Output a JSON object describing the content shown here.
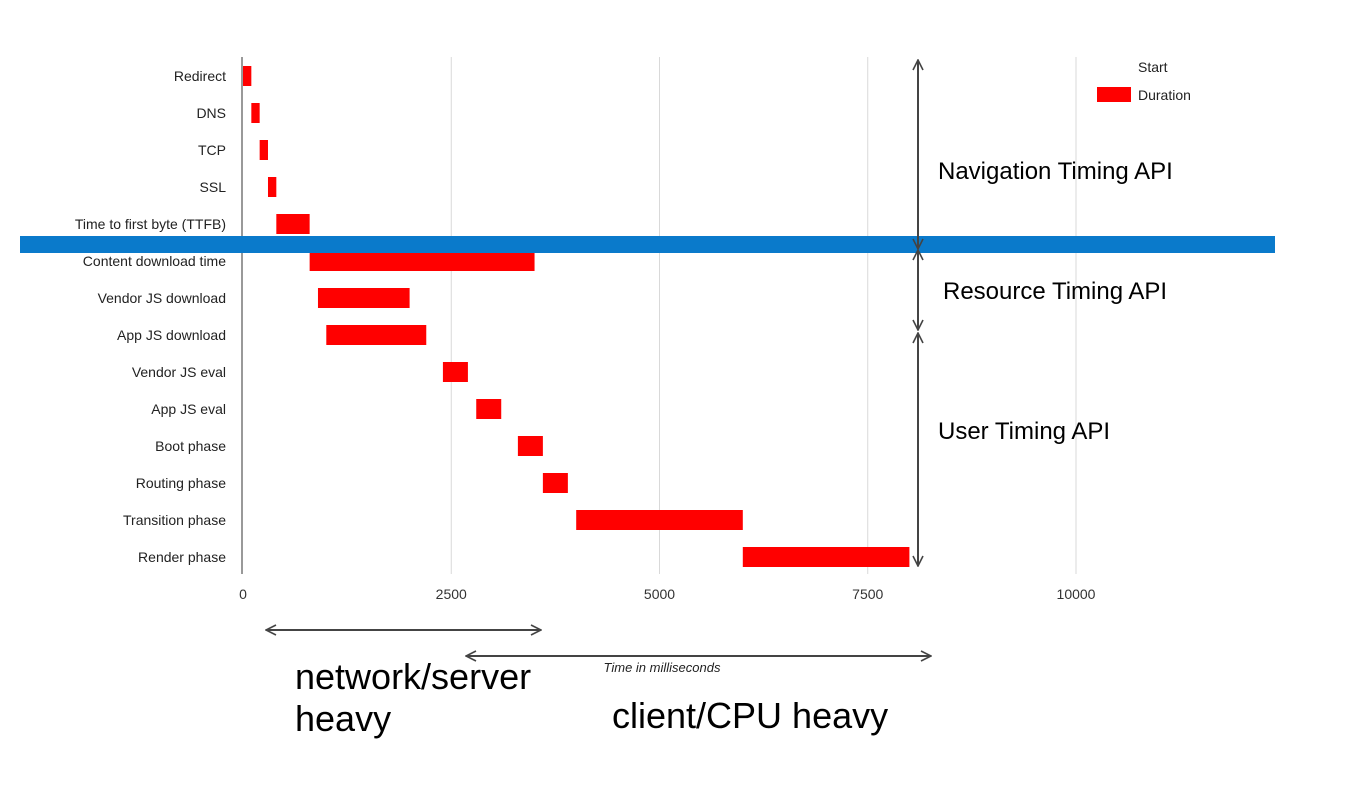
{
  "chart_data": {
    "type": "bar",
    "orientation": "horizontal-stacked-gantt",
    "categories": [
      "Redirect",
      "DNS",
      "TCP",
      "SSL",
      "Time to first byte (TTFB)",
      "Content download time",
      "Vendor JS download",
      "App JS download",
      "Vendor JS eval",
      "App JS eval",
      "Boot phase",
      "Routing phase",
      "Transition phase",
      "Render phase"
    ],
    "series": [
      {
        "name": "Start",
        "visible": false,
        "values": [
          0,
          100,
          200,
          300,
          400,
          800,
          900,
          1000,
          2400,
          2800,
          3300,
          3600,
          4000,
          6000
        ]
      },
      {
        "name": "Duration",
        "color": "#ff0000",
        "values": [
          100,
          100,
          100,
          100,
          400,
          2700,
          1100,
          1200,
          300,
          300,
          300,
          300,
          2000,
          2000
        ]
      }
    ],
    "xlabel": "Time in milliseconds",
    "ylabel": "",
    "xlim": [
      0,
      12000
    ],
    "xticks": [
      0,
      2500,
      5000,
      7500,
      10000
    ],
    "xtick_labels": [
      "0",
      "2500",
      "5000",
      "7500",
      "10000"
    ],
    "grid": true,
    "legend": {
      "position": "top-right",
      "entries": [
        "Start",
        "Duration"
      ]
    },
    "annotations": {
      "apis": [
        "Navigation Timing API",
        "Resource Timing API",
        "User Timing API"
      ],
      "spans": [
        "network/server heavy",
        "client/CPU heavy"
      ]
    },
    "colors": {
      "duration": "#ff0000",
      "divider": "#0a7acb",
      "grid": "#d9d9d9",
      "arrow": "#444444"
    }
  }
}
